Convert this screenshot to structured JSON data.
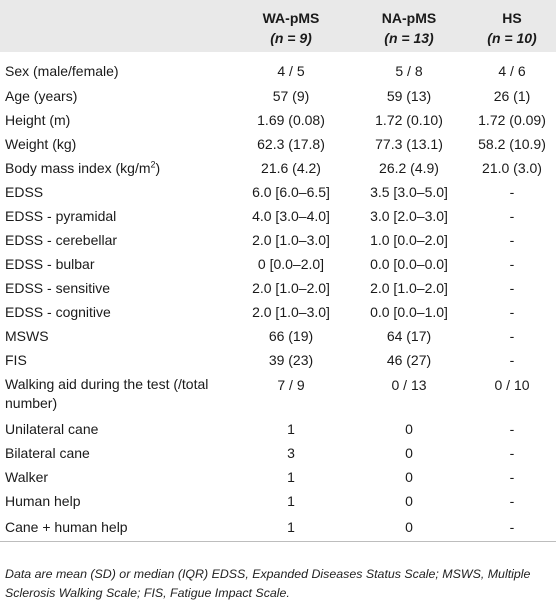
{
  "header": {
    "col1_name": "WA-pMS",
    "col1_n": "(n = 9)",
    "col2_name": "NA-pMS",
    "col2_n": "(n = 13)",
    "col3_name": "HS",
    "col3_n": "(n = 10)"
  },
  "rows": [
    {
      "label": "Sex (male/female)",
      "c1": "4 / 5",
      "c2": "5 / 8",
      "c3": "4 / 6"
    },
    {
      "label": "Age (years)",
      "c1": "57 (9)",
      "c2": "59 (13)",
      "c3": "26 (1)"
    },
    {
      "label": "Height (m)",
      "c1": "1.69 (0.08)",
      "c2": "1.72 (0.10)",
      "c3": "1.72 (0.09)"
    },
    {
      "label": "Weight (kg)",
      "c1": "62.3 (17.8)",
      "c2": "77.3 (13.1)",
      "c3": "58.2 (10.9)"
    },
    {
      "label": "Body mass index (kg/m",
      "label_sup": "2",
      "label_end": ")",
      "c1": "21.6 (4.2)",
      "c2": "26.2 (4.9)",
      "c3": "21.0 (3.0)"
    },
    {
      "label": "EDSS",
      "c1": "6.0 [6.0–6.5]",
      "c2": "3.5 [3.0–5.0]",
      "c3": "-"
    },
    {
      "label": "EDSS - pyramidal",
      "c1": "4.0 [3.0–4.0]",
      "c2": "3.0 [2.0–3.0]",
      "c3": "-"
    },
    {
      "label": "EDSS - cerebellar",
      "c1": "2.0 [1.0–3.0]",
      "c2": "1.0 [0.0–2.0]",
      "c3": "-"
    },
    {
      "label": "EDSS - bulbar",
      "c1": "0 [0.0–2.0]",
      "c2": "0.0 [0.0–0.0]",
      "c3": "-"
    },
    {
      "label": "EDSS - sensitive",
      "c1": "2.0 [1.0–2.0]",
      "c2": "2.0 [1.0–2.0]",
      "c3": "-"
    },
    {
      "label": "EDSS - cognitive",
      "c1": "2.0 [1.0–3.0]",
      "c2": "0.0 [0.0–1.0]",
      "c3": "-"
    },
    {
      "label": "MSWS",
      "c1": "66 (19)",
      "c2": "64 (17)",
      "c3": "-"
    },
    {
      "label": "FIS",
      "c1": "39 (23)",
      "c2": "46 (27)",
      "c3": "-"
    },
    {
      "label": "Walking aid during the test (/total number)",
      "c1": "7 / 9",
      "c2": "0 / 13",
      "c3": "0 / 10"
    },
    {
      "label": "Unilateral cane",
      "c1": "1",
      "c2": "0",
      "c3": "-"
    },
    {
      "label": "Bilateral cane",
      "c1": "3",
      "c2": "0",
      "c3": "-"
    },
    {
      "label": "Walker",
      "c1": "1",
      "c2": "0",
      "c3": "-"
    },
    {
      "label": "Human help",
      "c1": "1",
      "c2": "0",
      "c3": "-"
    },
    {
      "label": "Cane + human help",
      "c1": "1",
      "c2": "0",
      "c3": "-"
    }
  ],
  "footnote": "Data are mean (SD) or median (IQR) EDSS, Expanded Diseases Status Scale; MSWS, Multiple Sclerosis Walking Scale; FIS, Fatigue Impact Scale."
}
